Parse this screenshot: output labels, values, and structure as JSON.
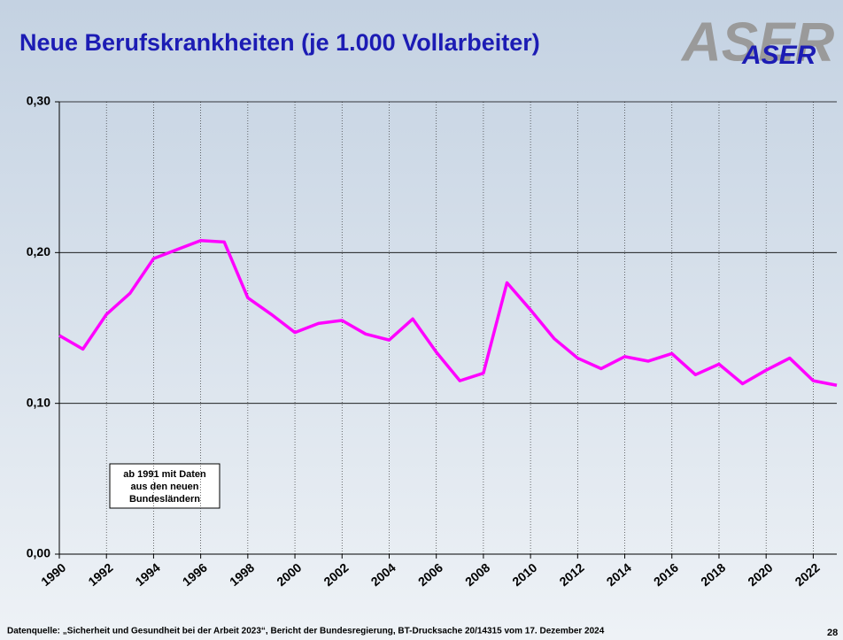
{
  "chart_data": {
    "type": "line",
    "title": "Neue Berufskrankheiten (je 1.000 Vollarbeiter)",
    "logo": "ASER",
    "annotation": [
      "ab 1991 mit Daten",
      "aus den neuen",
      "Bundesländern"
    ],
    "source": "Datenquelle: „Sicherheit und Gesundheit bei der Arbeit 2023“, Bericht der Bundesregierung, BT-Drucksache 20/14315 vom 17. Dezember 2024",
    "page_number": "28",
    "x": [
      1990,
      1991,
      1992,
      1993,
      1994,
      1995,
      1996,
      1997,
      1998,
      1999,
      2000,
      2001,
      2002,
      2003,
      2004,
      2005,
      2006,
      2007,
      2008,
      2009,
      2010,
      2011,
      2012,
      2013,
      2014,
      2015,
      2016,
      2017,
      2018,
      2019,
      2020,
      2021,
      2022,
      2023
    ],
    "series": [
      {
        "name": "Neue Berufskrankheiten",
        "color": "#ff00ff",
        "values": [
          0.145,
          0.136,
          0.159,
          0.173,
          0.196,
          0.202,
          0.208,
          0.207,
          0.17,
          0.159,
          0.147,
          0.153,
          0.155,
          0.146,
          0.142,
          0.156,
          0.134,
          0.115,
          0.12,
          0.18,
          0.162,
          0.143,
          0.13,
          0.123,
          0.131,
          0.128,
          0.133,
          0.119,
          0.126,
          0.113,
          0.122,
          0.13,
          0.115,
          0.112
        ]
      }
    ],
    "xlim": [
      1990,
      2023
    ],
    "xticks": [
      1990,
      1992,
      1994,
      1996,
      1998,
      2000,
      2002,
      2004,
      2006,
      2008,
      2010,
      2012,
      2014,
      2016,
      2018,
      2020,
      2022
    ],
    "ylim": [
      0,
      0.3
    ],
    "yticks": [
      {
        "value": 0,
        "label": "0,00"
      },
      {
        "value": 0.1,
        "label": "0,10"
      },
      {
        "value": 0.2,
        "label": "0,20"
      },
      {
        "value": 0.3,
        "label": "0,30"
      }
    ],
    "grid": true
  }
}
